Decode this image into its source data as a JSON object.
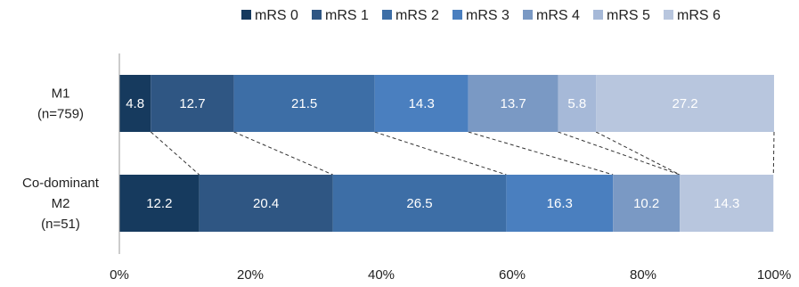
{
  "chart_data": {
    "type": "bar",
    "orientation": "horizontal",
    "stacked": true,
    "categories": [
      [
        "M1",
        "(n=759)"
      ],
      [
        "Co-dominant",
        "M2",
        "(n=51)"
      ]
    ],
    "series": [
      {
        "name": "mRS 0",
        "color": "#163a5e",
        "values": [
          4.8,
          12.2
        ]
      },
      {
        "name": "mRS 1",
        "color": "#2f5683",
        "values": [
          12.7,
          20.4
        ]
      },
      {
        "name": "mRS 2",
        "color": "#3d6ea6",
        "values": [
          21.5,
          26.5
        ]
      },
      {
        "name": "mRS 3",
        "color": "#4a7fbf",
        "values": [
          14.3,
          16.3
        ]
      },
      {
        "name": "mRS 4",
        "color": "#7a99c4",
        "values": [
          13.7,
          10.2
        ]
      },
      {
        "name": "mRS 5",
        "color": "#a6b9d8",
        "values": [
          5.8,
          0
        ]
      },
      {
        "name": "mRS 6",
        "color": "#b8c6de",
        "values": [
          27.2,
          14.3
        ]
      }
    ],
    "xlim": [
      0,
      100
    ],
    "xticks": [
      "0%",
      "20%",
      "40%",
      "60%",
      "80%",
      "100%"
    ],
    "legend_position": "top",
    "connector_lines": true,
    "grid": false
  }
}
